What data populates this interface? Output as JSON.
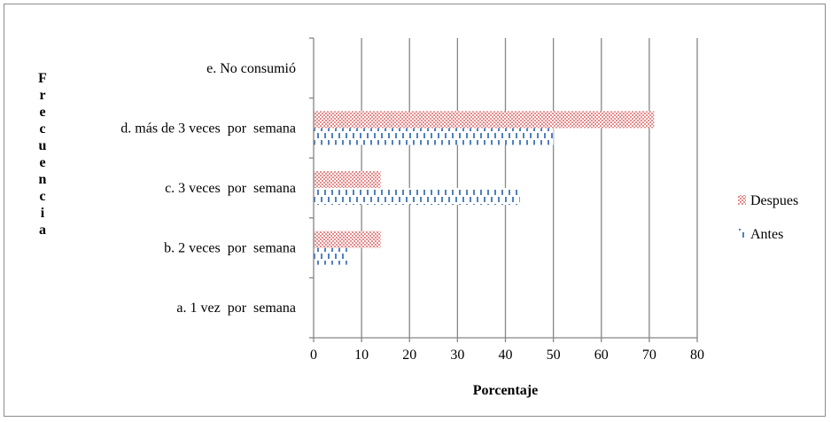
{
  "chart_data": {
    "type": "bar",
    "orientation": "horizontal",
    "title": "",
    "xlabel": "Porcentaje",
    "ylabel": "Frecuencia",
    "categories": [
      "a. 1 vez  por  semana",
      "b. 2 veces  por  semana",
      "c. 3 veces  por  semana",
      "d. más de 3 veces  por  semana",
      "e. No consumió"
    ],
    "series": [
      {
        "name": "Antes",
        "values": [
          0,
          7,
          43,
          50,
          0
        ],
        "color": "#4f81bd",
        "pattern": "dashed-vertical"
      },
      {
        "name": "Despues",
        "values": [
          0,
          14,
          14,
          71,
          0
        ],
        "color": "#e06666",
        "pattern": "dotted"
      }
    ],
    "xlim": [
      0,
      80
    ],
    "xticks": [
      "0",
      "10",
      "20",
      "30",
      "40",
      "50",
      "60",
      "70",
      "80"
    ],
    "grid": "vertical",
    "legend_position": "right",
    "legend_order": [
      "Despues",
      "Antes"
    ]
  }
}
